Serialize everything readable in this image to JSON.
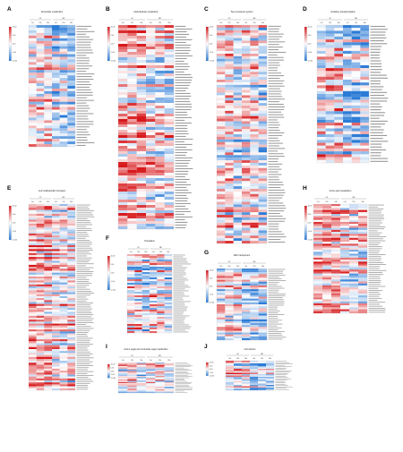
{
  "figure": {
    "color_scale": {
      "low": "#2b7bd6",
      "mid": "#ffffff",
      "high": "#d7191c"
    },
    "panels": [
      {
        "letter": "A",
        "title": "Nucleotide metabolism",
        "scale_ticks": [
          "10.00",
          "5.00",
          "0.00",
          "-5.00",
          "-10.00"
        ],
        "rows": 46
      },
      {
        "letter": "B",
        "title": "Carbohydrate metabolism",
        "scale_ticks": [
          "10.00",
          "5.00",
          "0.00",
          "-5.00",
          "-10.00"
        ],
        "rows": 76
      },
      {
        "letter": "C",
        "title": "Two component system",
        "scale_ticks": [
          "10.00",
          "5.00",
          "0.00",
          "-5.00",
          "-10.00"
        ],
        "rows": 84
      },
      {
        "letter": "D",
        "title": "Oxidative phosphorylation",
        "scale_ticks": [
          "10.00",
          "5.00",
          "0.00",
          "-5.00",
          "-10.00"
        ],
        "rows": 48
      },
      {
        "letter": "E",
        "title": "Cell motility/biofilm formation",
        "scale_ticks": [
          "10.00",
          "5.00",
          "0.00",
          "-5.00",
          "-10.00"
        ],
        "rows": 95
      },
      {
        "letter": "F",
        "title": "Translation",
        "scale_ticks": [
          "10.00",
          "5.00",
          "0.00",
          "-5.00",
          "-10.00"
        ],
        "rows": 44
      },
      {
        "letter": "G",
        "title": "ABC transporters",
        "scale_ticks": [
          "10.00",
          "5.00",
          "0.00",
          "-5.00",
          "-10.00"
        ],
        "rows": 38
      },
      {
        "letter": "H",
        "title": "Amino acid metabolism",
        "scale_ticks": [
          "10.00",
          "5.00",
          "0.00",
          "-5.00",
          "-10.00"
        ],
        "rows": 55
      },
      {
        "letter": "I",
        "title": "Amino sugar and nucleotide sugar metabolism",
        "scale_ticks": [
          "10.00",
          "5.00",
          "0.00",
          "-5.00",
          "-10.00"
        ],
        "rows": 25
      },
      {
        "letter": "J",
        "title": "Cell division",
        "scale_ticks": [
          "10.00",
          "5.00",
          "0.00",
          "-5.00",
          "-10.00"
        ],
        "rows": 22
      }
    ]
  },
  "chart_data": {
    "type": "heatmap",
    "panels": [
      "A",
      "B",
      "C",
      "D",
      "E",
      "F",
      "G",
      "H",
      "I",
      "J"
    ],
    "titles": [
      "Nucleotide metabolism",
      "Carbohydrate metabolism",
      "Two component system",
      "Oxidative phosphorylation",
      "Cell motility/biofilm formation",
      "Translation",
      "ABC transporters",
      "Amino acid metabolism",
      "Amino sugar and nucleotide sugar metabolism",
      "Cell division"
    ],
    "columns": 6,
    "color_range": [
      -10,
      10
    ]
  }
}
